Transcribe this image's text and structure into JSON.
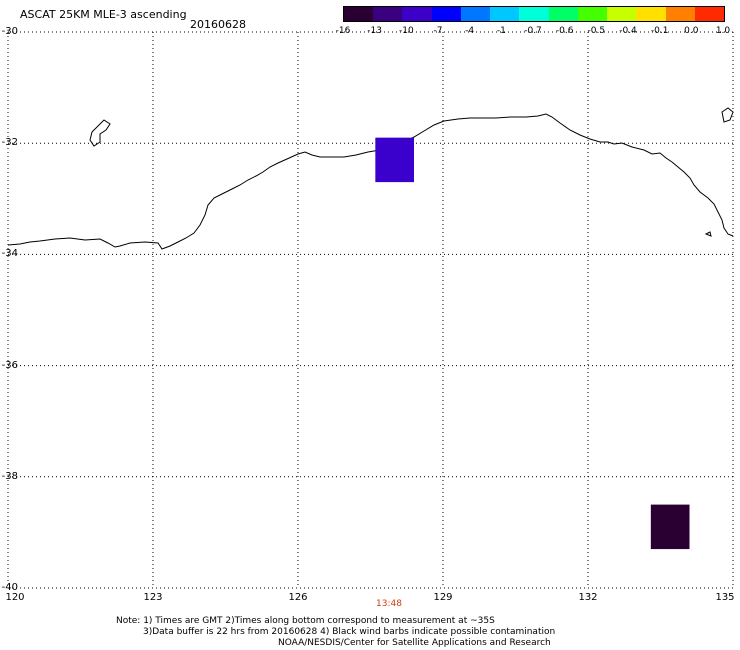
{
  "title": "ASCAT 25KM MLE-3 ascending",
  "date": "20160628",
  "colorbar": {
    "ticks": [
      "-16",
      "-13",
      "-10",
      "-7",
      "-4",
      "-1",
      "-0.7",
      "-0.6",
      "-0.5",
      "-0.4",
      "-0.1",
      "0.0",
      "1.0"
    ],
    "colors": [
      "#2a0033",
      "#3a0080",
      "#3c00c8",
      "#0000ff",
      "#0077ff",
      "#00c8ff",
      "#00ffd8",
      "#00ff66",
      "#44ff00",
      "#c8ff00",
      "#ffe000",
      "#ff8000",
      "#ff2a00"
    ]
  },
  "map": {
    "lat_labels": [
      "-30",
      "-32",
      "-34",
      "-36",
      "-38",
      "-40"
    ],
    "lon_labels": [
      "120",
      "123",
      "126",
      "129",
      "132",
      "135"
    ],
    "lat_range": [
      -40,
      -30
    ],
    "lon_range": [
      120,
      135
    ],
    "cells": [
      {
        "lon": 128.0,
        "lat": -32.3,
        "value": -10,
        "color": "#3a00cc"
      },
      {
        "lon": 133.7,
        "lat": -38.9,
        "value": -16,
        "color": "#2a0033"
      }
    ]
  },
  "time_label": "13:48",
  "notes": {
    "line1": "Note: 1) Times are GMT 2)Times along bottom correspond to measurement at ~35S",
    "line2": "3)Data buffer is 22 hrs from 20160628 4) Black wind barbs indicate possible contamination",
    "line3": "NOAA/NESDIS/Center for Satellite Applications and Research"
  }
}
